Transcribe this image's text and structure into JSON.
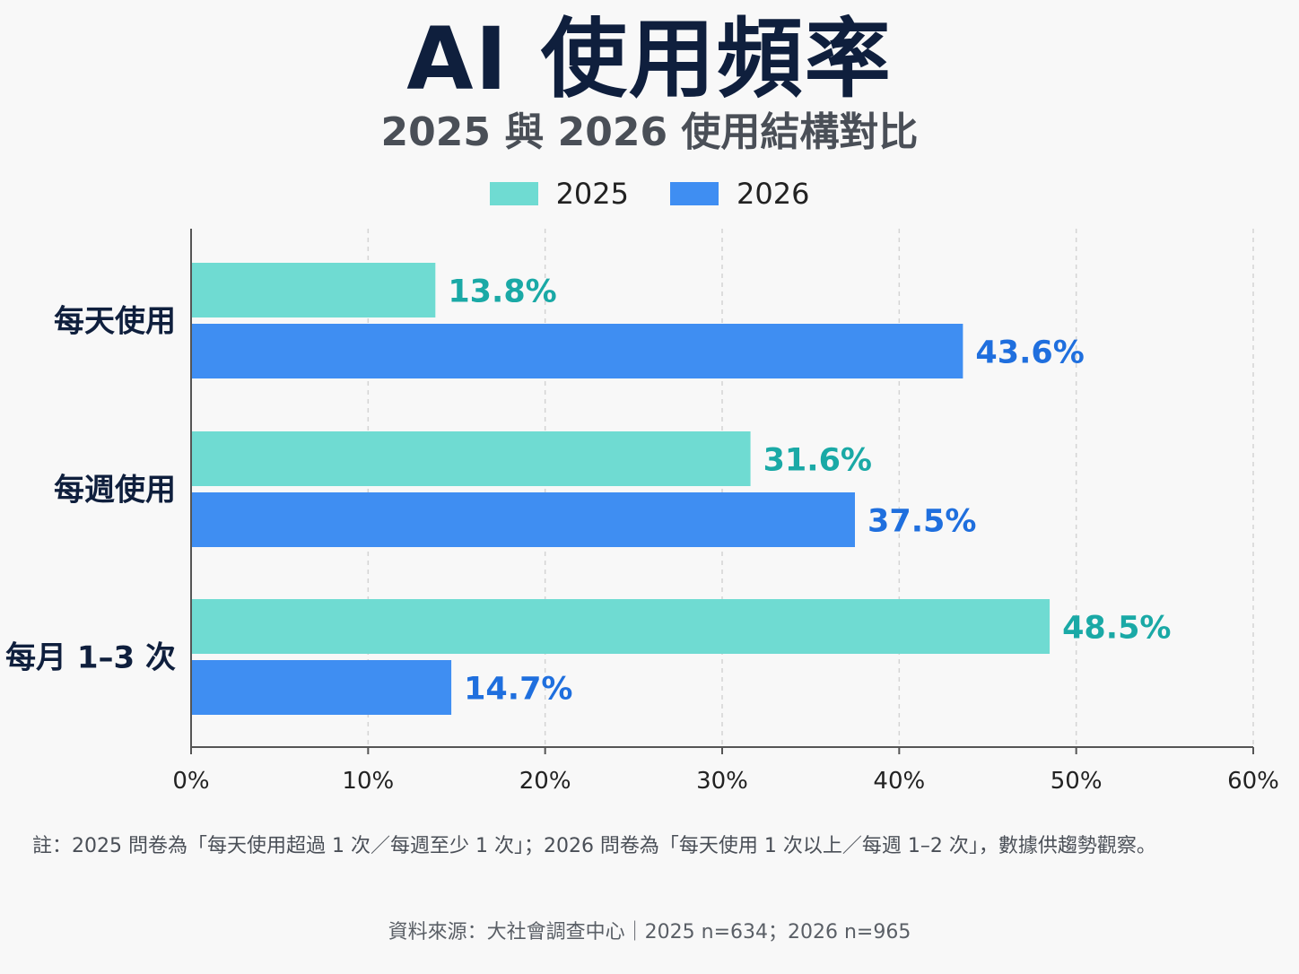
{
  "title": "AI 使用頻率",
  "subtitle": "2025 與 2026 使用結構對比",
  "note": "註：2025 問卷為「每天使用超過 1 次／每週至少 1 次」；2026 問卷為「每天使用 1 次以上／每週 1–2 次」，數據供趨勢觀察。",
  "source": "資料來源：大社會調查中心｜2025 n=634；2026 n=965",
  "colors": {
    "series_2025": "#6fdbd2",
    "series_2026": "#3f8ef2",
    "label_2025": "#1aa9a6",
    "label_2026": "#1f6fde",
    "axis": "#555555",
    "grid": "#d4d4d4",
    "category_text": "#0f1f3d"
  },
  "chart_data": {
    "type": "bar",
    "orientation": "horizontal",
    "categories": [
      "每天使用",
      "每週使用",
      "每月 1–3 次"
    ],
    "series": [
      {
        "name": "2025",
        "values": [
          13.8,
          31.6,
          48.5
        ],
        "labels": [
          "13.8%",
          "31.6%",
          "48.5%"
        ]
      },
      {
        "name": "2026",
        "values": [
          43.6,
          37.5,
          14.7
        ],
        "labels": [
          "43.6%",
          "37.5%",
          "14.7%"
        ]
      }
    ],
    "xlim": [
      0,
      60
    ],
    "xticks": [
      0,
      10,
      20,
      30,
      40,
      50,
      60
    ],
    "xtick_labels": [
      "0%",
      "10%",
      "20%",
      "30%",
      "40%",
      "50%",
      "60%"
    ],
    "grid": "vertical dashed",
    "legend": "top-center"
  }
}
